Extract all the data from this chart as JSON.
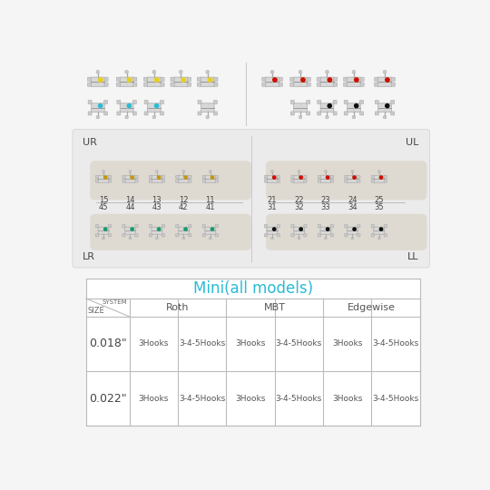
{
  "bg_color": "#f5f5f5",
  "table_title": "Mini(all models)",
  "table_title_color": "#29bcd4",
  "table_systems": [
    "Roth",
    "MBT",
    "Edgewise"
  ],
  "table_size_col": [
    "0.018\"",
    "0.022\""
  ],
  "table_hooks": [
    "3Hooks",
    "3-4-5Hooks"
  ],
  "upper_numbers_left": [
    "15",
    "14",
    "13",
    "12",
    "11"
  ],
  "upper_numbers_right": [
    "21",
    "22",
    "23",
    "24",
    "25"
  ],
  "lower_numbers_left": [
    "45",
    "44",
    "43",
    "42",
    "41"
  ],
  "lower_numbers_right": [
    "31",
    "32",
    "33",
    "34",
    "35"
  ],
  "color_ur": "#c8960a",
  "color_ul": "#cc1100",
  "color_lr": "#1a9a6c",
  "color_ll": "#111111",
  "top_row1_colors_left": [
    "#e8d020",
    "#e8d020",
    "#e8d020",
    "#e8d020",
    "#e8d020"
  ],
  "top_row1_colors_right": [
    "#cc1100",
    "#cc1100",
    "#cc1100",
    "#cc1100",
    "#cc1100"
  ],
  "top_row2_colors_left": [
    "#29bcd4",
    "#29bcd4",
    "#29bcd4",
    "#cccccc",
    "#cccccc"
  ],
  "top_row2_colors_right": [
    "#cccccc",
    "#111111",
    "#111111",
    "#111111",
    "#111111"
  ],
  "jaw_bg": "#ebebeb",
  "strip_color": "#dedad2",
  "divider_color": "#cccccc"
}
